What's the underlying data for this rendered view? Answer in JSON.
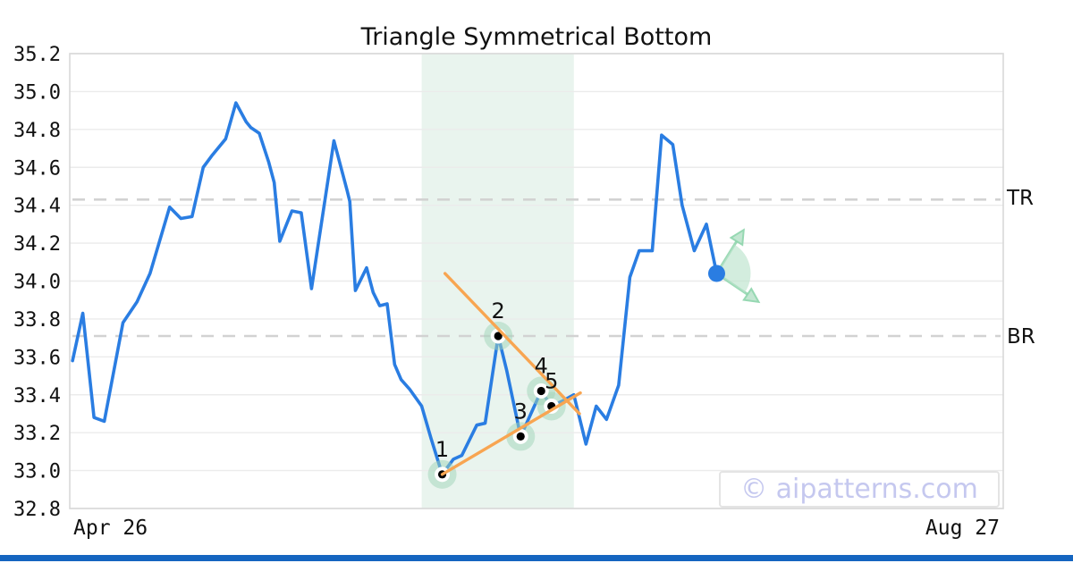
{
  "header": {
    "title": "Triangle Symmetrical Bottom"
  },
  "watermark": {
    "text": "© aipatterns.com"
  },
  "axes": {
    "x_left_label": "Apr 26",
    "x_right_label": "Aug 27",
    "ylim": [
      32.8,
      35.2
    ],
    "y_ticks": [
      {
        "label": "35.2",
        "value": 35.2
      },
      {
        "label": "35.0",
        "value": 35.0
      },
      {
        "label": "34.8",
        "value": 34.8
      },
      {
        "label": "34.6",
        "value": 34.6
      },
      {
        "label": "34.4",
        "value": 34.4
      },
      {
        "label": "34.2",
        "value": 34.2
      },
      {
        "label": "34.0",
        "value": 34.0
      },
      {
        "label": "33.8",
        "value": 33.8
      },
      {
        "label": "33.6",
        "value": 33.6
      },
      {
        "label": "33.4",
        "value": 33.4
      },
      {
        "label": "33.2",
        "value": 33.2
      },
      {
        "label": "33.0",
        "value": 33.0
      },
      {
        "label": "32.8",
        "value": 32.8
      }
    ]
  },
  "levels": {
    "tr": {
      "label": "TR",
      "value": 34.43
    },
    "br": {
      "label": "BR",
      "value": 33.71
    }
  },
  "chart_data": {
    "type": "line",
    "title": "Triangle Symmetrical Bottom",
    "xlabel": "",
    "ylabel": "",
    "x_range_labels": [
      "Apr 26",
      "Aug 27"
    ],
    "ylim": [
      32.8,
      35.2
    ],
    "grid": true,
    "zone": {
      "x_start": 0.377,
      "x_end": 0.54
    },
    "series": [
      {
        "name": "price",
        "points": [
          [
            0.003,
            33.58
          ],
          [
            0.014,
            33.83
          ],
          [
            0.026,
            33.28
          ],
          [
            0.037,
            33.26
          ],
          [
            0.057,
            33.78
          ],
          [
            0.072,
            33.89
          ],
          [
            0.086,
            34.04
          ],
          [
            0.107,
            34.39
          ],
          [
            0.119,
            34.33
          ],
          [
            0.131,
            34.34
          ],
          [
            0.143,
            34.6
          ],
          [
            0.152,
            34.66
          ],
          [
            0.167,
            34.75
          ],
          [
            0.178,
            34.94
          ],
          [
            0.189,
            34.84
          ],
          [
            0.194,
            34.81
          ],
          [
            0.203,
            34.78
          ],
          [
            0.213,
            34.63
          ],
          [
            0.219,
            34.52
          ],
          [
            0.225,
            34.21
          ],
          [
            0.238,
            34.37
          ],
          [
            0.248,
            34.36
          ],
          [
            0.259,
            33.96
          ],
          [
            0.283,
            34.74
          ],
          [
            0.297,
            34.48
          ],
          [
            0.3,
            34.42
          ],
          [
            0.306,
            33.95
          ],
          [
            0.318,
            34.07
          ],
          [
            0.325,
            33.94
          ],
          [
            0.332,
            33.87
          ],
          [
            0.34,
            33.88
          ],
          [
            0.348,
            33.56
          ],
          [
            0.355,
            33.48
          ],
          [
            0.364,
            33.43
          ],
          [
            0.377,
            33.34
          ],
          [
            0.387,
            33.17
          ],
          [
            0.399,
            32.98
          ],
          [
            0.411,
            33.06
          ],
          [
            0.42,
            33.08
          ],
          [
            0.436,
            33.24
          ],
          [
            0.445,
            33.25
          ],
          [
            0.459,
            33.71
          ],
          [
            0.468,
            33.53
          ],
          [
            0.483,
            33.18
          ],
          [
            0.505,
            33.42
          ],
          [
            0.516,
            33.34
          ],
          [
            0.529,
            33.37
          ],
          [
            0.54,
            33.4
          ],
          [
            0.553,
            33.14
          ],
          [
            0.564,
            33.34
          ],
          [
            0.575,
            33.27
          ],
          [
            0.588,
            33.45
          ],
          [
            0.6,
            34.02
          ],
          [
            0.61,
            34.16
          ],
          [
            0.624,
            34.16
          ],
          [
            0.634,
            34.77
          ],
          [
            0.646,
            34.72
          ],
          [
            0.656,
            34.4
          ],
          [
            0.669,
            34.16
          ],
          [
            0.682,
            34.3
          ],
          [
            0.693,
            34.04
          ]
        ]
      }
    ],
    "pattern_points": [
      {
        "label": "1",
        "x": 0.399,
        "y": 32.98
      },
      {
        "label": "2",
        "x": 0.459,
        "y": 33.71
      },
      {
        "label": "3",
        "x": 0.483,
        "y": 33.18
      },
      {
        "label": "4",
        "x": 0.505,
        "y": 33.42
      },
      {
        "label": "5",
        "x": 0.516,
        "y": 33.34
      }
    ],
    "trendlines": [
      {
        "name": "upper",
        "x1": 0.402,
        "y1": 34.04,
        "x2": 0.546,
        "y2": 33.3
      },
      {
        "name": "lower",
        "x1": 0.399,
        "y1": 32.98,
        "x2": 0.547,
        "y2": 33.41
      }
    ],
    "breakout": {
      "x": 0.693,
      "y": 34.04,
      "arrow_up": {
        "x": 0.722,
        "y": 34.27
      },
      "arrow_down": {
        "x": 0.738,
        "y": 33.89
      }
    },
    "colors": {
      "price_line": "#2a7de2",
      "trendline": "#f8a551",
      "zone_fill": "#e9f4ee",
      "point_halo": "#9fd4b8",
      "grid": "#ebebeb",
      "plot_border": "#d9d9d9",
      "dashed_level": "#d2d2d2",
      "arrow_green": "#8bd4aa",
      "wedge_fill": "#bce4cd",
      "watermark": "#c5c8ef",
      "bottom_bar": "#1565c0",
      "text": "#111111"
    }
  }
}
